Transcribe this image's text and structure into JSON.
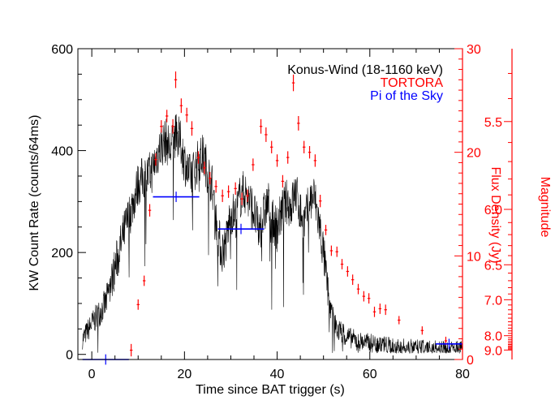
{
  "chart_data": {
    "type": "line",
    "title": "",
    "xlabel": "Time since BAT trigger (s)",
    "ylabel_left": "KW Count Rate (counts/64ms)",
    "ylabel_right_flux": "Flux Density (Jy)",
    "ylabel_right_mag": "Magnitude",
    "xlim": [
      -3,
      80
    ],
    "ylim_left": [
      -10,
      600
    ],
    "ylim_flux": [
      0,
      30
    ],
    "x_ticks": [
      0,
      20,
      40,
      60,
      80
    ],
    "y_ticks_left": [
      0,
      200,
      400,
      600
    ],
    "y_ticks_flux": [
      0,
      10,
      20,
      30
    ],
    "y_ticks_mag": [
      5.5,
      6.0,
      6.5,
      7.0,
      8.0,
      9.0
    ],
    "legend": [
      "Konus-Wind (18-1160 keV)",
      "TORTORA",
      "Pi of the Sky"
    ],
    "colors": {
      "konus": "#000000",
      "tortora": "#ff0000",
      "pi": "#0000ff",
      "axis": "#000000",
      "flux_axis": "#ff0000",
      "mag_axis": "#ff0000"
    },
    "series": [
      {
        "name": "Konus-Wind (18-1160 keV)",
        "style": "noisy-line",
        "envelope_x": [
          -2,
          0,
          3,
          5,
          7,
          8,
          9,
          10,
          11,
          12,
          13,
          14,
          15,
          16,
          17,
          18,
          19,
          20,
          21,
          22,
          23,
          24,
          25,
          26,
          27,
          28,
          29,
          30,
          31,
          32,
          33,
          34,
          35,
          36,
          37,
          38,
          39,
          40,
          41,
          42,
          43,
          44,
          45,
          46,
          47,
          48,
          49,
          50,
          51,
          52,
          53,
          55,
          58,
          62,
          66,
          70,
          75,
          80
        ],
        "envelope_y": [
          30,
          60,
          100,
          170,
          240,
          270,
          300,
          335,
          345,
          350,
          360,
          390,
          410,
          420,
          400,
          430,
          420,
          380,
          350,
          360,
          380,
          390,
          360,
          330,
          250,
          200,
          220,
          280,
          270,
          310,
          320,
          300,
          280,
          240,
          270,
          300,
          260,
          250,
          280,
          300,
          290,
          320,
          280,
          260,
          300,
          310,
          260,
          200,
          120,
          70,
          50,
          35,
          25,
          20,
          15,
          12,
          10,
          10
        ],
        "noise_amplitude": 45
      },
      {
        "name": "TORTORA",
        "axis": "flux",
        "x": [
          8.5,
          10,
          11.3,
          12.5,
          13.8,
          15,
          16.2,
          17.5,
          18.1,
          19.3,
          20.5,
          21.6,
          23,
          24.3,
          25.5,
          26.8,
          28.2,
          29.5,
          31,
          32.4,
          33.6,
          34.8,
          36.5,
          37.6,
          38.8,
          40,
          41.2,
          42.3,
          43.5,
          44.6,
          45.8,
          47,
          48.2,
          49.3,
          50.5,
          51.7,
          52.9,
          54,
          55.2,
          56.3,
          57.5,
          58.7,
          59.8,
          61,
          62.2,
          63.4,
          66.3,
          71.3,
          76.4
        ],
        "y": [
          0.9,
          5.3,
          7.6,
          14.4,
          19.3,
          22.5,
          23.5,
          22.5,
          27,
          24.5,
          23.6,
          22.3,
          19.5,
          18.5,
          17.5,
          16.7,
          15.8,
          16.2,
          16.5,
          15.5,
          15.8,
          18.8,
          22.5,
          21.7,
          20.5,
          19.2,
          17.2,
          19.5,
          26.7,
          22.8,
          20.5,
          20,
          19.2,
          15.3,
          12.5,
          10.5,
          10.4,
          9.2,
          8.5,
          7.7,
          6.8,
          6.1,
          5.9,
          4.6,
          4.9,
          4.8,
          3.8,
          2.8,
          1.8
        ],
        "y_err": [
          0.6,
          0.5,
          0.5,
          0.6,
          0.6,
          0.6,
          0.6,
          0.7,
          0.8,
          0.7,
          0.7,
          0.7,
          0.6,
          0.6,
          0.6,
          0.6,
          0.6,
          0.6,
          0.6,
          0.6,
          0.6,
          0.6,
          0.7,
          0.7,
          0.6,
          0.6,
          0.6,
          0.6,
          0.8,
          0.7,
          0.6,
          0.6,
          0.6,
          0.6,
          0.5,
          0.5,
          0.5,
          0.5,
          0.5,
          0.5,
          0.5,
          0.5,
          0.5,
          0.5,
          0.5,
          0.5,
          0.4,
          0.4,
          0.4
        ],
        "x_err": 0.3
      },
      {
        "name": "Pi of the Sky",
        "axis": "flux",
        "x_start": [
          -2,
          13.2,
          27.2,
          74.2
        ],
        "x_end": [
          8,
          23.2,
          37.2,
          80
        ],
        "y": [
          0.0,
          15.7,
          12.6,
          1.5
        ],
        "y_err": [
          0.5,
          0.5,
          0.5,
          0.5
        ]
      }
    ]
  }
}
